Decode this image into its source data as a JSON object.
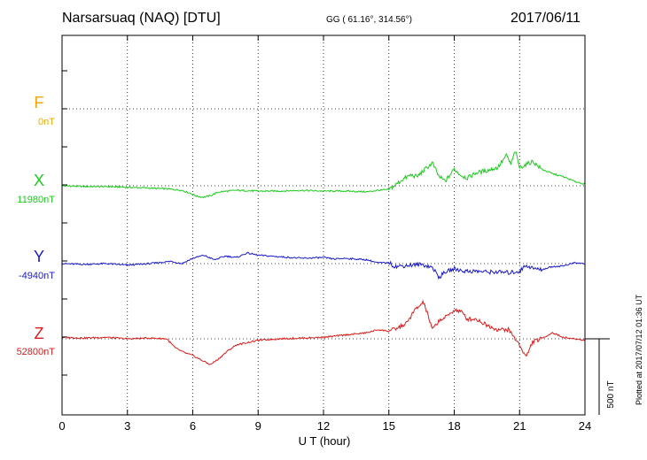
{
  "header": {
    "station": "Narsarsuaq (NAQ)  [DTU]",
    "coords": "GG ( 61.16°, 314.56°)",
    "date": "2017/06/11"
  },
  "components": [
    {
      "letter": "F",
      "base": "0nT",
      "color": "#f0a800"
    },
    {
      "letter": "X",
      "base": "11980nT",
      "color": "#19cc19"
    },
    {
      "letter": "Y",
      "base": "-4940nT",
      "color": "#1a1acc"
    },
    {
      "letter": "Z",
      "base": "52800nT",
      "color": "#e01a1a"
    }
  ],
  "scale_label": "500 nT",
  "plotted_note": "Plotted at 2017/07/12 01:36 UT",
  "chart_data": {
    "type": "line",
    "xlabel": "U T (hour)",
    "xlim": [
      0,
      24
    ],
    "xticks": [
      0,
      3,
      6,
      9,
      12,
      15,
      18,
      21,
      24
    ],
    "yunit": "nT",
    "series": [
      {
        "name": "X",
        "color": "#19cc19",
        "x": [
          0,
          1,
          2,
          3,
          4,
          4.8,
          5.5,
          5.9,
          6.2,
          6.5,
          6.8,
          7.2,
          8,
          9,
          10,
          11,
          12,
          13,
          14,
          14.5,
          15,
          15.3,
          15.6,
          16,
          16.3,
          16.6,
          17,
          17.3,
          17.6,
          18,
          18.3,
          18.6,
          19,
          19.5,
          20,
          20.4,
          20.6,
          20.8,
          21,
          21.3,
          21.6,
          22,
          22.5,
          23,
          23.5,
          24
        ],
        "y": [
          0,
          -5,
          -5,
          -10,
          -15,
          -20,
          -30,
          -50,
          -70,
          -75,
          -65,
          -40,
          -30,
          -35,
          -35,
          -30,
          -35,
          -35,
          -40,
          -30,
          -25,
          5,
          40,
          70,
          60,
          100,
          150,
          60,
          30,
          110,
          70,
          50,
          85,
          100,
          120,
          200,
          140,
          230,
          120,
          140,
          160,
          110,
          80,
          60,
          30,
          10
        ]
      },
      {
        "name": "Y",
        "color": "#1a1acc",
        "x": [
          0,
          1,
          2,
          3,
          4,
          5,
          5.5,
          6,
          6.5,
          7,
          7.5,
          8,
          8.5,
          9,
          9.5,
          10,
          11,
          12,
          12.5,
          13,
          14,
          14.5,
          15,
          15.3,
          15.6,
          16,
          16.5,
          17,
          17.3,
          17.6,
          18,
          18.5,
          19,
          19.5,
          20,
          20.5,
          21,
          21.3,
          21.6,
          22,
          22.5,
          23,
          23.5,
          24
        ],
        "y": [
          0,
          -5,
          0,
          -10,
          0,
          15,
          0,
          35,
          55,
          25,
          50,
          40,
          70,
          55,
          50,
          45,
          35,
          40,
          30,
          35,
          25,
          5,
          5,
          -20,
          -15,
          -10,
          -5,
          -25,
          -90,
          -55,
          -35,
          -50,
          -50,
          -55,
          -55,
          -60,
          -50,
          -10,
          -30,
          -40,
          -20,
          -15,
          5,
          0
        ]
      },
      {
        "name": "Z",
        "color": "#e01a1a",
        "x": [
          0,
          1,
          2,
          3,
          4,
          4.8,
          5.2,
          5.6,
          6,
          6.4,
          6.8,
          7.2,
          7.6,
          8,
          9,
          10,
          11,
          12,
          13,
          14,
          14.5,
          15,
          15.4,
          15.8,
          16.2,
          16.6,
          17,
          17.3,
          17.6,
          18,
          18.3,
          18.6,
          19,
          19.5,
          20,
          20.5,
          21,
          21.3,
          21.6,
          22,
          22.5,
          23,
          23.5,
          24
        ],
        "y": [
          10,
          5,
          10,
          0,
          5,
          0,
          -60,
          -90,
          -110,
          -140,
          -170,
          -130,
          -80,
          -40,
          -10,
          0,
          5,
          10,
          25,
          40,
          60,
          50,
          70,
          100,
          190,
          240,
          60,
          120,
          140,
          190,
          180,
          130,
          130,
          90,
          60,
          60,
          -40,
          -120,
          -20,
          0,
          40,
          10,
          0,
          -10
        ]
      }
    ]
  }
}
